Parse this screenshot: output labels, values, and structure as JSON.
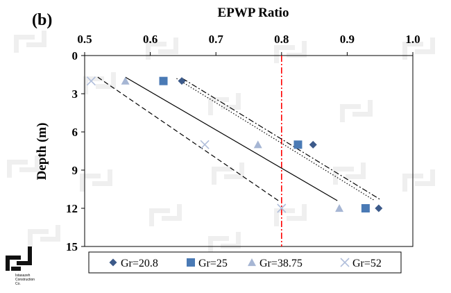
{
  "panel_label": "(b)",
  "logo_text": [
    "Istasazeh",
    "Construction",
    "Co."
  ],
  "chart_data": {
    "type": "scatter",
    "title": "EPWP Ratio",
    "xlabel": "",
    "ylabel": "Depth (m)",
    "x_axis_position": "top",
    "y_inverted": true,
    "xlim": [
      0.5,
      1.0
    ],
    "ylim": [
      0,
      15
    ],
    "x_ticks": [
      "0.5",
      "0.6",
      "0.7",
      "0.8",
      "0.9",
      "1.0"
    ],
    "y_ticks": [
      "0",
      "3",
      "6",
      "9",
      "12",
      "15"
    ],
    "grid": false,
    "legend_position": "bottom",
    "reference_line": {
      "x": 0.8,
      "color": "#ff0000",
      "style": "dash-dot"
    },
    "series": [
      {
        "name": "Gr=20.8",
        "marker": "diamond",
        "color": "#3c5a8a",
        "points": [
          [
            0.648,
            2
          ],
          [
            0.848,
            7
          ],
          [
            0.948,
            12
          ]
        ],
        "trendline": {
          "style": "dash-dot",
          "from": [
            0.649,
            1.8
          ],
          "to": [
            0.95,
            11.3
          ]
        }
      },
      {
        "name": "Gr=25",
        "marker": "square",
        "color": "#4a7ab5",
        "points": [
          [
            0.62,
            2
          ],
          [
            0.825,
            7
          ],
          [
            0.928,
            12
          ]
        ],
        "trendline": {
          "style": "dotted",
          "from": [
            0.64,
            1.8
          ],
          "to": [
            0.942,
            11.4
          ]
        }
      },
      {
        "name": "Gr=38.75",
        "marker": "triangle",
        "color": "#a6b6d4",
        "points": [
          [
            0.562,
            2
          ],
          [
            0.764,
            7
          ],
          [
            0.888,
            12
          ]
        ],
        "trendline": {
          "style": "solid",
          "from": [
            0.562,
            1.7
          ],
          "to": [
            0.885,
            11.4
          ]
        }
      },
      {
        "name": "Gr=52",
        "marker": "x",
        "color": "#b0bedb",
        "points": [
          [
            0.51,
            2
          ],
          [
            0.683,
            7
          ],
          [
            0.8,
            12
          ]
        ],
        "trendline": {
          "style": "dashed",
          "from": [
            0.52,
            1.7
          ],
          "to": [
            0.798,
            11.5
          ]
        }
      }
    ]
  }
}
